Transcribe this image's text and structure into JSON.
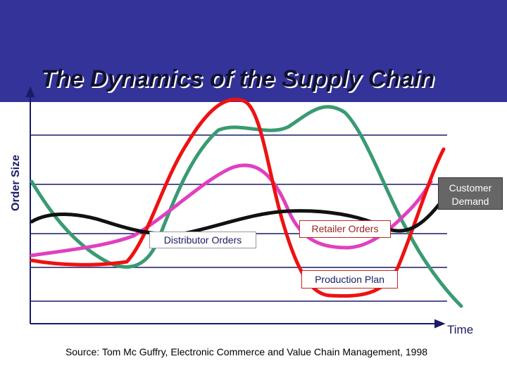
{
  "title": "The Dynamics of the Supply Chain",
  "y_axis_label": "Order Size",
  "x_axis_label": "Time",
  "labels": {
    "customer_demand": "Customer Demand",
    "distributor_orders": "Distributor Orders",
    "retailer_orders": "Retailer Orders",
    "production_plan": "Production Plan"
  },
  "source": "Source: Tom Mc Guffry, Electronic Commerce and Value Chain Management, 1998"
}
